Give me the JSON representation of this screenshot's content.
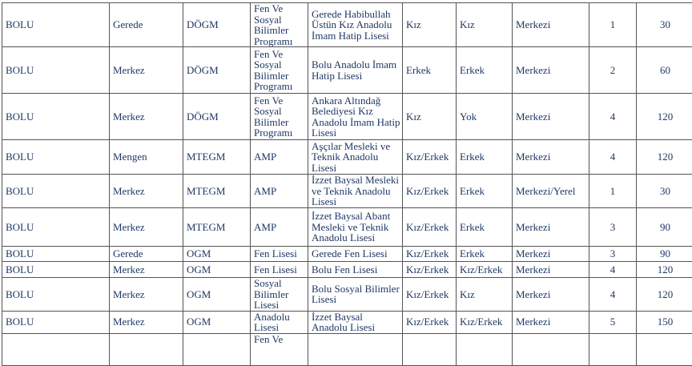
{
  "colors": {
    "text": "#1f3864",
    "border": "#545454",
    "background": "#ffffff"
  },
  "table": {
    "description": "School placement table for BOLU province (no header row visible)",
    "rows": [
      {
        "cells": [
          "BOLU",
          "Gerede",
          "DÖGM",
          "Fen Ve Sosyal Bilimler Programı",
          "Gerede Habibullah Üstün Kız Anadolu İmam Hatip Lisesi",
          "Kız",
          "Kız",
          "Merkezi",
          "1",
          "30"
        ]
      },
      {
        "cells": [
          "BOLU",
          "Merkez",
          "DÖGM",
          "Fen Ve Sosyal Bilimler Programı",
          "Bolu Anadolu İmam Hatip Lisesi",
          "Erkek",
          "Erkek",
          "Merkezi",
          "2",
          "60"
        ]
      },
      {
        "cells": [
          "BOLU",
          "Merkez",
          "DÖGM",
          "Fen Ve Sosyal Bilimler Programı",
          "Ankara Altındağ Belediyesi Kız Anadolu İmam Hatip Lisesi",
          "Kız",
          "Yok",
          "Merkezi",
          "4",
          "120"
        ]
      },
      {
        "cells": [
          "BOLU",
          "Mengen",
          "MTEGM",
          "AMP",
          "Aşçılar Mesleki ve Teknik Anadolu Lisesi",
          "Kız/Erkek",
          "Erkek",
          "Merkezi",
          "4",
          "120"
        ]
      },
      {
        "cells": [
          "BOLU",
          "Merkez",
          "MTEGM",
          "AMP",
          "İzzet Baysal Mesleki ve Teknik Anadolu Lisesi",
          "Kız/Erkek",
          "Erkek",
          "Merkezi/Yerel",
          "1",
          "30"
        ]
      },
      {
        "cells": [
          "BOLU",
          "Merkez",
          "MTEGM",
          "AMP",
          "İzzet Baysal Abant Mesleki ve Teknik Anadolu Lisesi",
          "Kız/Erkek",
          "Erkek",
          "Merkezi",
          "3",
          "90"
        ]
      },
      {
        "cells": [
          "BOLU",
          "Gerede",
          "OGM",
          "Fen Lisesi",
          "Gerede Fen Lisesi",
          "Kız/Erkek",
          "Erkek",
          "Merkezi",
          "3",
          "90"
        ]
      },
      {
        "cells": [
          "BOLU",
          "Merkez",
          "OGM",
          "Fen Lisesi",
          "Bolu Fen Lisesi",
          "Kız/Erkek",
          "Kız/Erkek",
          "Merkezi",
          "4",
          "120"
        ]
      },
      {
        "cells": [
          "BOLU",
          "Merkez",
          "OGM",
          "Sosyal Bilimler Lisesi",
          "Bolu Sosyal Bilimler Lisesi",
          "Kız/Erkek",
          "Kız",
          "Merkezi",
          "4",
          "120"
        ]
      },
      {
        "cells": [
          "BOLU",
          "Merkez",
          "OGM",
          "Anadolu Lisesi",
          "İzzet Baysal Anadolu Lisesi",
          "Kız/Erkek",
          "Kız/Erkek",
          "Merkezi",
          "5",
          "150"
        ]
      },
      {
        "cells": [
          "",
          "",
          "",
          "Fen Ve",
          "",
          "",
          "",
          "",
          "",
          ""
        ]
      }
    ]
  }
}
